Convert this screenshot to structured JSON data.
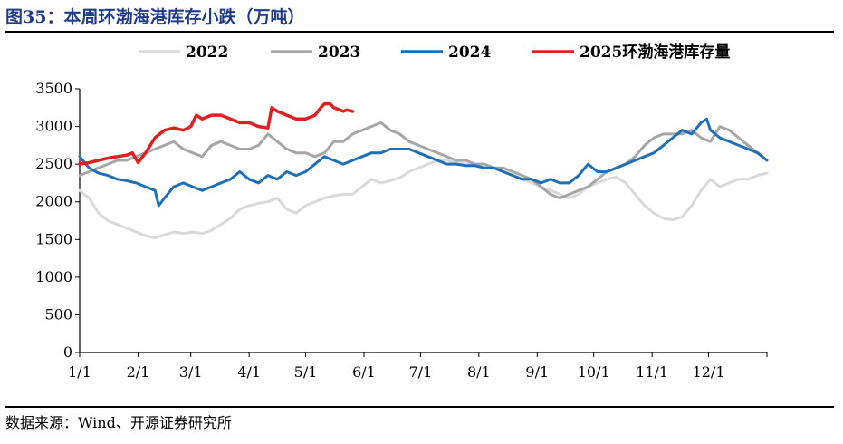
{
  "figure": {
    "title": "图35：本周环渤海港库存小跌（万吨）",
    "source": "数据来源：Wind、开源证券研究所"
  },
  "colors": {
    "y2022": "#d9d9d9",
    "y2023": "#a6a6a6",
    "y2024": "#1f6fb5",
    "y2025": "#e02020",
    "axis": "#000000"
  },
  "chart_data": {
    "type": "line",
    "title": "本周环渤海港库存小跌",
    "xlabel": "",
    "ylabel": "",
    "ylim": [
      0,
      3500
    ],
    "y_ticks": [
      0,
      500,
      1000,
      1500,
      2000,
      2500,
      3000,
      3500
    ],
    "x_ticks": [
      "1/1",
      "2/1",
      "3/1",
      "4/1",
      "5/1",
      "6/1",
      "7/1",
      "8/1",
      "9/1",
      "10/1",
      "11/1",
      "12/1"
    ],
    "x_tick_days": [
      0,
      31,
      59,
      90,
      120,
      151,
      181,
      212,
      243,
      273,
      304,
      334
    ],
    "x_max_day": 365,
    "grid": false,
    "legend_position": "top",
    "series": [
      {
        "name": "2022",
        "color_key": "y2022",
        "x": [
          0,
          5,
          10,
          15,
          20,
          25,
          30,
          35,
          40,
          45,
          50,
          55,
          60,
          65,
          70,
          75,
          80,
          85,
          90,
          95,
          100,
          105,
          110,
          115,
          120,
          125,
          130,
          135,
          140,
          145,
          150,
          155,
          160,
          165,
          170,
          175,
          180,
          185,
          190,
          195,
          200,
          205,
          210,
          215,
          220,
          225,
          230,
          235,
          240,
          245,
          250,
          255,
          260,
          265,
          270,
          275,
          280,
          285,
          290,
          295,
          300,
          305,
          310,
          315,
          320,
          325,
          330,
          335,
          340,
          345,
          350,
          355,
          360,
          365
        ],
        "y": [
          2150,
          2050,
          1850,
          1750,
          1700,
          1650,
          1600,
          1550,
          1520,
          1560,
          1600,
          1580,
          1600,
          1580,
          1620,
          1700,
          1780,
          1900,
          1950,
          1980,
          2000,
          2050,
          1900,
          1850,
          1950,
          2000,
          2050,
          2080,
          2100,
          2100,
          2200,
          2300,
          2250,
          2280,
          2320,
          2400,
          2450,
          2500,
          2550,
          2550,
          2520,
          2500,
          2480,
          2450,
          2450,
          2400,
          2350,
          2300,
          2250,
          2200,
          2150,
          2100,
          2050,
          2100,
          2200,
          2250,
          2300,
          2330,
          2250,
          2100,
          1950,
          1850,
          1780,
          1760,
          1800,
          1950,
          2150,
          2300,
          2200,
          2250,
          2300,
          2300,
          2350,
          2380
        ]
      },
      {
        "name": "2023",
        "color_key": "y2023",
        "x": [
          0,
          5,
          10,
          15,
          20,
          25,
          30,
          35,
          40,
          45,
          50,
          55,
          60,
          65,
          70,
          75,
          80,
          85,
          90,
          95,
          100,
          105,
          110,
          115,
          120,
          125,
          130,
          135,
          140,
          145,
          150,
          155,
          160,
          165,
          170,
          175,
          180,
          185,
          190,
          195,
          200,
          205,
          210,
          215,
          220,
          225,
          230,
          235,
          240,
          245,
          250,
          255,
          260,
          265,
          270,
          275,
          280,
          285,
          290,
          295,
          300,
          305,
          310,
          315,
          320,
          325,
          330,
          335,
          340,
          345,
          350,
          355,
          360,
          365
        ],
        "y": [
          2350,
          2400,
          2450,
          2500,
          2550,
          2550,
          2600,
          2650,
          2700,
          2750,
          2800,
          2700,
          2650,
          2600,
          2750,
          2800,
          2750,
          2700,
          2700,
          2750,
          2900,
          2800,
          2700,
          2650,
          2650,
          2600,
          2650,
          2800,
          2800,
          2900,
          2950,
          3000,
          3050,
          2950,
          2900,
          2800,
          2750,
          2700,
          2650,
          2600,
          2550,
          2550,
          2500,
          2500,
          2450,
          2450,
          2400,
          2350,
          2300,
          2200,
          2100,
          2050,
          2100,
          2150,
          2200,
          2300,
          2400,
          2450,
          2500,
          2600,
          2750,
          2850,
          2900,
          2900,
          2900,
          2950,
          2850,
          2800,
          3000,
          2950,
          2850,
          2750,
          2650,
          2550
        ]
      },
      {
        "name": "2024",
        "color_key": "y2024",
        "x": [
          0,
          5,
          10,
          15,
          20,
          25,
          30,
          35,
          40,
          42,
          45,
          50,
          55,
          60,
          65,
          70,
          75,
          80,
          85,
          90,
          95,
          100,
          105,
          110,
          115,
          120,
          125,
          130,
          135,
          140,
          145,
          150,
          155,
          160,
          165,
          170,
          175,
          180,
          185,
          190,
          195,
          200,
          205,
          210,
          215,
          220,
          225,
          230,
          235,
          240,
          245,
          250,
          255,
          260,
          265,
          270,
          275,
          280,
          285,
          290,
          295,
          300,
          305,
          310,
          315,
          320,
          325,
          330,
          333,
          335,
          340,
          345,
          350,
          355,
          360,
          365
        ],
        "y": [
          2600,
          2450,
          2380,
          2350,
          2300,
          2280,
          2250,
          2200,
          2150,
          1950,
          2050,
          2200,
          2250,
          2200,
          2150,
          2200,
          2250,
          2300,
          2400,
          2300,
          2250,
          2350,
          2300,
          2400,
          2350,
          2400,
          2500,
          2600,
          2550,
          2500,
          2550,
          2600,
          2650,
          2650,
          2700,
          2700,
          2700,
          2650,
          2600,
          2550,
          2500,
          2500,
          2480,
          2480,
          2450,
          2450,
          2400,
          2350,
          2300,
          2300,
          2250,
          2300,
          2250,
          2250,
          2350,
          2500,
          2400,
          2400,
          2450,
          2500,
          2550,
          2600,
          2650,
          2750,
          2850,
          2950,
          2900,
          3050,
          3100,
          2950,
          2850,
          2800,
          2750,
          2700,
          2650,
          2550
        ]
      },
      {
        "name": "2025环渤海港库存量",
        "color_key": "y2025",
        "x": [
          0,
          5,
          10,
          15,
          20,
          25,
          28,
          31,
          35,
          40,
          45,
          50,
          55,
          59,
          62,
          65,
          70,
          75,
          80,
          85,
          90,
          95,
          100,
          102,
          105,
          110,
          115,
          120,
          125,
          128,
          130,
          133,
          135,
          140,
          142,
          145
        ],
        "y": [
          2500,
          2520,
          2550,
          2580,
          2600,
          2620,
          2650,
          2520,
          2650,
          2850,
          2950,
          2980,
          2950,
          3000,
          3150,
          3100,
          3150,
          3150,
          3100,
          3050,
          3050,
          3000,
          2980,
          3250,
          3200,
          3150,
          3100,
          3100,
          3150,
          3250,
          3300,
          3300,
          3250,
          3200,
          3220,
          3200
        ]
      }
    ]
  }
}
